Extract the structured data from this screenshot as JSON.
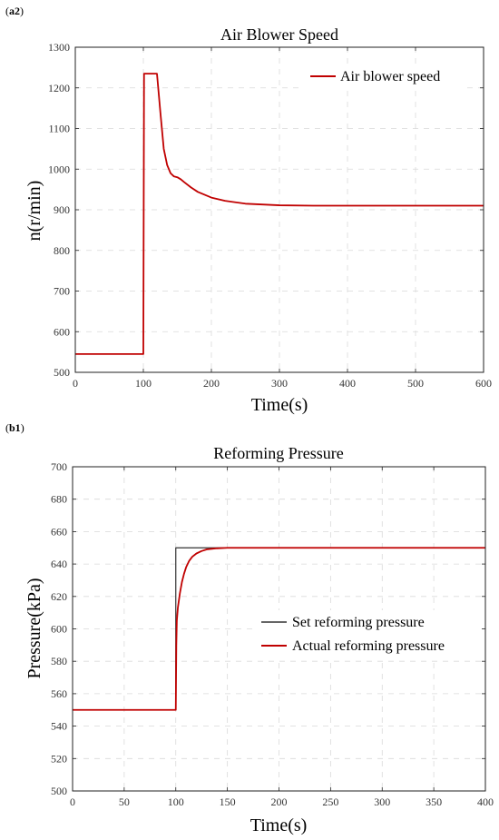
{
  "chart_data": [
    {
      "type": "line",
      "panel": "a2",
      "title": "Air Blower Speed",
      "xlabel": "Time(s)",
      "ylabel": "n(r/min)",
      "xlim": [
        0,
        600
      ],
      "ylim": [
        500,
        1300
      ],
      "xticks": [
        0,
        100,
        200,
        300,
        400,
        500,
        600
      ],
      "yticks": [
        500,
        600,
        700,
        800,
        900,
        1000,
        1100,
        1200,
        1300
      ],
      "grid": true,
      "legend_position": "top-right",
      "series": [
        {
          "name": "Air blower speed",
          "color": "#c00000",
          "x": [
            0,
            100,
            101,
            120,
            125,
            130,
            135,
            140,
            145,
            150,
            155,
            160,
            170,
            180,
            200,
            220,
            250,
            300,
            350,
            400,
            500,
            600
          ],
          "y": [
            545,
            545,
            1235,
            1235,
            1140,
            1050,
            1010,
            990,
            982,
            980,
            975,
            968,
            955,
            944,
            930,
            922,
            915,
            911,
            910,
            910,
            910,
            910
          ]
        }
      ]
    },
    {
      "type": "line",
      "panel": "b1",
      "title": "Reforming Pressure",
      "xlabel": "Time(s)",
      "ylabel": "Pressure(kPa)",
      "xlim": [
        0,
        400
      ],
      "ylim": [
        500,
        700
      ],
      "xticks": [
        0,
        50,
        100,
        150,
        200,
        250,
        300,
        350,
        400
      ],
      "yticks": [
        500,
        520,
        540,
        560,
        580,
        600,
        620,
        640,
        660,
        680,
        700
      ],
      "grid": true,
      "legend_position": "center-right",
      "series": [
        {
          "name": "Set reforming pressure",
          "color": "#333333",
          "x": [
            0,
            100,
            100,
            400
          ],
          "y": [
            550,
            550,
            650,
            650
          ]
        },
        {
          "name": "Actual reforming pressure",
          "color": "#c00000",
          "x": [
            0,
            100,
            100.5,
            101,
            102,
            104,
            106,
            108,
            110,
            113,
            116,
            120,
            125,
            130,
            135,
            140,
            150,
            160,
            180,
            200,
            400
          ],
          "y": [
            550,
            550,
            590,
            605,
            613,
            622,
            629,
            634,
            638,
            642,
            644.5,
            646.5,
            648,
            649,
            649.4,
            649.7,
            650,
            650,
            650,
            650,
            650
          ]
        }
      ]
    }
  ],
  "panels": [
    {
      "label_prefix": "(",
      "label_bold": "a2",
      "label_suffix": ")"
    },
    {
      "label_prefix": "(",
      "label_bold": "b1",
      "label_suffix": ")"
    }
  ]
}
